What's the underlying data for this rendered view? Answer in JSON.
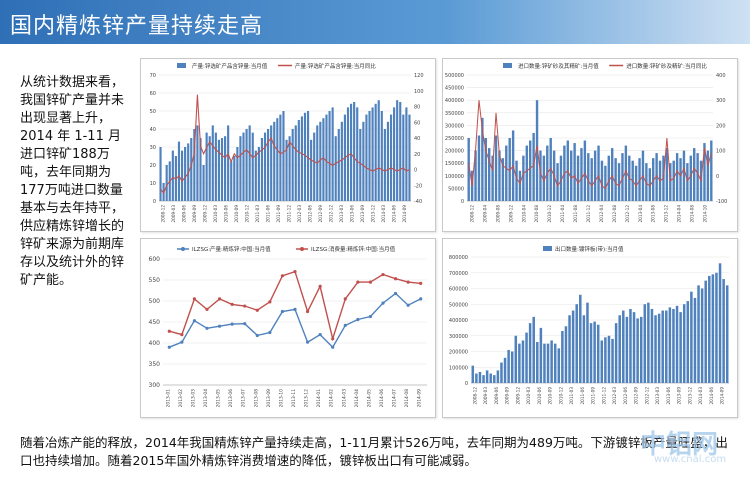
{
  "header": {
    "title": "国内精炼锌产量持续走高"
  },
  "side_text": "从统计数据来看，我国锌矿产量并未出现显著上升，2014 年 1-11 月进口锌矿188万吨，去年同期为177万吨进口数量基本与去年持平，供应精炼锌增长的锌矿来源为前期库存以及统计外的锌矿产能。",
  "bottom_text": "随着冶炼产能的释放，2014年我国精炼锌产量持续走高，1-11月累计526万吨，去年同期为489万吨。下游镀锌板产量旺盛，出口也持续增加。随着2015年国外精炼锌消费增速的降低，镀锌板出口有可能减弱。",
  "watermark": {
    "main": "中铝网",
    "sub": "www.cnal.com"
  },
  "colors": {
    "bar": "#4f81bd",
    "line_red": "#c0504d",
    "line_blue": "#4f81bd",
    "title_bg": "#3a78c0"
  },
  "chart_data": [
    {
      "type": "bar+line",
      "legend": [
        "产量:锌选矿产品含锌量:当月值",
        "产量:锌选矿产品含锌量:当月同比"
      ],
      "x_ticks": [
        "2008-12",
        "2009-03",
        "2009-06",
        "2009-09",
        "2009-12",
        "2010-03",
        "2010-06",
        "2010-09",
        "2010-12",
        "2011-03",
        "2011-06",
        "2011-09",
        "2011-12",
        "2012-03",
        "2012-06",
        "2012-09",
        "2012-12",
        "2013-03",
        "2013-06",
        "2013-09",
        "2013-12",
        "2014-03",
        "2014-06",
        "2014-09"
      ],
      "y_left": {
        "min": 0,
        "max": 70,
        "ticks": [
          0,
          10,
          20,
          30,
          40,
          50,
          60,
          70
        ]
      },
      "y_right": {
        "min": -40,
        "max": 120,
        "ticks": [
          -40,
          -20,
          0,
          20,
          40,
          60,
          80,
          100,
          120
        ]
      },
      "bars": [
        30,
        10,
        20,
        22,
        28,
        25,
        33,
        28,
        30,
        32,
        35,
        40,
        42,
        35,
        20,
        38,
        36,
        42,
        38,
        34,
        35,
        36,
        42,
        22,
        25,
        30,
        36,
        38,
        40,
        42,
        38,
        28,
        30,
        35,
        38,
        40,
        42,
        44,
        46,
        48,
        50,
        34,
        36,
        40,
        42,
        45,
        47,
        49,
        50,
        34,
        38,
        42,
        44,
        46,
        48,
        50,
        52,
        36,
        40,
        44,
        48,
        52,
        54,
        55,
        52,
        40,
        44,
        48,
        50,
        52,
        54,
        56,
        50,
        40,
        44,
        48,
        52,
        56,
        55,
        48,
        52,
        48
      ],
      "line": [
        -25,
        -30,
        -20,
        -15,
        -10,
        -12,
        -8,
        -15,
        -10,
        -5,
        5,
        20,
        95,
        30,
        20,
        28,
        35,
        30,
        25,
        22,
        18,
        15,
        20,
        10,
        20,
        15,
        18,
        22,
        25,
        20,
        15,
        18,
        22,
        25,
        28,
        35,
        40,
        30,
        25,
        20,
        22,
        25,
        35,
        30,
        25,
        22,
        20,
        18,
        15,
        12,
        10,
        8,
        12,
        15,
        10,
        8,
        5,
        8,
        10,
        12,
        15,
        18,
        20,
        15,
        10,
        8,
        5,
        2,
        0,
        -2,
        0,
        2,
        0,
        -2,
        0,
        2,
        0,
        -2,
        0,
        2,
        -2,
        0
      ]
    },
    {
      "type": "bar+line",
      "legend": [
        "进口数量:锌矿砂及其精矿:当月值",
        "进口数量:锌矿砂及精矿:当月同比"
      ],
      "x_ticks": [
        "2008-12",
        "2009-04",
        "2009-08",
        "2009-12",
        "2010-04",
        "2010-08",
        "2010-12",
        "2011-04",
        "2011-08",
        "2011-12",
        "2012-04",
        "2012-08",
        "2012-12",
        "2013-04",
        "2013-08",
        "2013-12",
        "2014-04",
        "2014-08",
        "2014-10"
      ],
      "y_left": {
        "min": 0,
        "max": 500000,
        "ticks": [
          0,
          50000,
          100000,
          150000,
          200000,
          250000,
          300000,
          350000,
          400000,
          450000,
          500000
        ]
      },
      "y_right": {
        "min": -100,
        "max": 400,
        "ticks": [
          -100,
          0,
          100,
          200,
          300,
          400
        ]
      },
      "bars": [
        250000,
        120000,
        200000,
        260000,
        330000,
        250000,
        210000,
        180000,
        260000,
        200000,
        170000,
        220000,
        250000,
        280000,
        160000,
        120000,
        180000,
        220000,
        240000,
        270000,
        400000,
        200000,
        180000,
        220000,
        250000,
        200000,
        150000,
        180000,
        220000,
        240000,
        200000,
        230000,
        180000,
        210000,
        240000,
        190000,
        170000,
        200000,
        220000,
        160000,
        140000,
        180000,
        210000,
        170000,
        150000,
        190000,
        220000,
        180000,
        160000,
        140000,
        170000,
        200000,
        150000,
        130000,
        170000,
        190000,
        160000,
        180000,
        210000,
        150000,
        160000,
        190000,
        170000,
        200000,
        150000,
        180000,
        210000,
        190000,
        160000,
        230000,
        200000,
        240000
      ],
      "line": [
        50,
        -40,
        100,
        300,
        180,
        100,
        60,
        20,
        250,
        80,
        40,
        30,
        20,
        40,
        -10,
        -30,
        10,
        20,
        30,
        40,
        120,
        10,
        -20,
        10,
        30,
        0,
        -40,
        -20,
        10,
        20,
        -10,
        0,
        -30,
        -10,
        10,
        -20,
        -40,
        -20,
        0,
        -40,
        -50,
        -20,
        0,
        -30,
        -40,
        -10,
        20,
        -10,
        -20,
        -40,
        -20,
        0,
        -30,
        -40,
        -20,
        0,
        -20,
        -10,
        150,
        -20,
        -10,
        20,
        0,
        30,
        -20,
        0,
        30,
        10,
        -20,
        110,
        40,
        90
      ]
    },
    {
      "type": "line",
      "legend": [
        "ILZSG:产量:精炼锌:中国:当月值",
        "ILZSG:消费量:精炼锌:中国:当月值"
      ],
      "x": [
        "2013-01",
        "2013-02",
        "2013-03",
        "2013-04",
        "2013-05",
        "2013-06",
        "2013-07",
        "2013-08",
        "2013-09",
        "2013-10",
        "2013-11",
        "2013-12",
        "2014-01",
        "2014-02",
        "2014-03",
        "2014-04",
        "2014-05",
        "2014-06",
        "2014-07",
        "2014-08",
        "2014-09"
      ],
      "y": {
        "min": 300,
        "max": 600,
        "ticks": [
          300,
          350,
          400,
          450,
          500,
          550,
          600
        ]
      },
      "series": [
        {
          "name": "ILZSG:产量:精炼锌:中国:当月值",
          "values": [
            390,
            402,
            453,
            435,
            440,
            445,
            446,
            418,
            425,
            475,
            480,
            402,
            420,
            390,
            442,
            456,
            463,
            495,
            518,
            490,
            505
          ]
        },
        {
          "name": "ILZSG:消费量:精炼锌:中国:当月值",
          "values": [
            428,
            420,
            505,
            480,
            505,
            492,
            488,
            478,
            498,
            560,
            570,
            475,
            535,
            410,
            505,
            545,
            545,
            563,
            553,
            545,
            542
          ]
        }
      ]
    },
    {
      "type": "bar",
      "legend": [
        "出口数量:镀锌板(带):当月值"
      ],
      "x_ticks": [
        "2008-12",
        "2009-03",
        "2009-06",
        "2009-09",
        "2009-12",
        "2010-03",
        "2010-06",
        "2010-09",
        "2010-12",
        "2011-03",
        "2011-06",
        "2011-09",
        "2011-12",
        "2012-03",
        "2012-06",
        "2012-09",
        "2012-12",
        "2013-03",
        "2013-06",
        "2013-09",
        "2013-12",
        "2014-03",
        "2014-06",
        "2014-09"
      ],
      "y": {
        "min": 0,
        "max": 800000,
        "ticks": [
          0,
          100000,
          200000,
          300000,
          400000,
          500000,
          600000,
          700000,
          800000
        ]
      },
      "values": [
        110000,
        60000,
        70000,
        50000,
        80000,
        60000,
        50000,
        80000,
        130000,
        160000,
        210000,
        200000,
        300000,
        250000,
        270000,
        320000,
        380000,
        420000,
        260000,
        350000,
        250000,
        250000,
        270000,
        250000,
        220000,
        330000,
        360000,
        430000,
        460000,
        500000,
        560000,
        430000,
        510000,
        380000,
        390000,
        370000,
        270000,
        290000,
        300000,
        280000,
        380000,
        430000,
        460000,
        420000,
        470000,
        450000,
        410000,
        420000,
        500000,
        510000,
        470000,
        430000,
        440000,
        460000,
        460000,
        480000,
        470000,
        490000,
        450000,
        500000,
        520000,
        580000,
        540000,
        620000,
        600000,
        650000,
        680000,
        690000,
        700000,
        760000,
        660000,
        620000
      ]
    }
  ]
}
